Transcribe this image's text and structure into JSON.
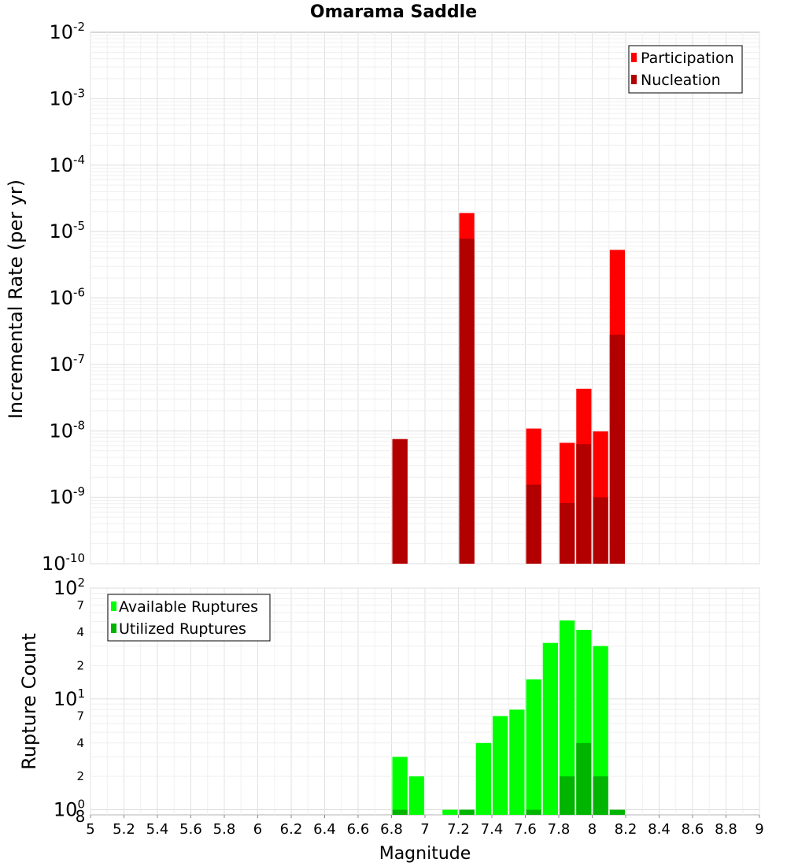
{
  "chart_data": [
    {
      "type": "bar",
      "title": "Omarama Saddle",
      "xlabel": "",
      "ylabel": "Incremental Rate (per yr)",
      "yscale": "log",
      "ylim": [
        1e-10,
        0.01
      ],
      "xlim": [
        5,
        9
      ],
      "bar_width": 0.1,
      "legend_position": "top-right",
      "grid": true,
      "y_ticks": [
        {
          "value": 1e-10,
          "base": "10",
          "exp": "-10"
        },
        {
          "value": 1e-09,
          "base": "10",
          "exp": "-9"
        },
        {
          "value": 1e-08,
          "base": "10",
          "exp": "-8"
        },
        {
          "value": 1e-07,
          "base": "10",
          "exp": "-7"
        },
        {
          "value": 1e-06,
          "base": "10",
          "exp": "-6"
        },
        {
          "value": 1e-05,
          "base": "10",
          "exp": "-5"
        },
        {
          "value": 0.0001,
          "base": "10",
          "exp": "-4"
        },
        {
          "value": 0.001,
          "base": "10",
          "exp": "-3"
        },
        {
          "value": 0.01,
          "base": "10",
          "exp": "-2"
        }
      ],
      "series": [
        {
          "name": "Participation",
          "color": "#ff0000",
          "x": [
            6.85,
            7.25,
            7.65,
            7.85,
            7.95,
            8.05,
            8.15
          ],
          "values": [
            7.5e-09,
            1.9e-05,
            1.08e-08,
            6.6e-09,
            4.3e-08,
            9.8e-09,
            5.3e-06
          ]
        },
        {
          "name": "Nucleation",
          "color": "#b20000",
          "x": [
            6.85,
            7.25,
            7.65,
            7.85,
            7.95,
            8.05,
            8.15
          ],
          "values": [
            7.5e-09,
            7.8e-06,
            1.55e-09,
            8.2e-10,
            6.3e-09,
            1e-09,
            2.8e-07
          ]
        }
      ]
    },
    {
      "type": "bar",
      "title": "",
      "xlabel": "Magnitude",
      "ylabel": "Rupture Count",
      "yscale": "log",
      "ylim": [
        0.9,
        100
      ],
      "xlim": [
        5,
        9
      ],
      "bar_width": 0.1,
      "legend_position": "top-left",
      "grid": true,
      "x_ticks": [
        "5",
        "5.2",
        "5.4",
        "5.6",
        "5.8",
        "6",
        "6.2",
        "6.4",
        "6.6",
        "6.8",
        "7",
        "7.2",
        "7.4",
        "7.6",
        "7.8",
        "8",
        "8.2",
        "8.4",
        "8.6",
        "8.8",
        "9"
      ],
      "y_major_ticks": [
        {
          "value": 1,
          "base": "10",
          "exp": "0"
        },
        {
          "value": 10,
          "base": "10",
          "exp": "1"
        },
        {
          "value": 100,
          "base": "10",
          "exp": "2"
        }
      ],
      "y_minor_ticks": [
        {
          "value": 2,
          "label": "2"
        },
        {
          "value": 4,
          "label": "4"
        },
        {
          "value": 7,
          "label": "7"
        },
        {
          "value": 20,
          "label": "2"
        },
        {
          "value": 40,
          "label": "4"
        },
        {
          "value": 70,
          "label": "7"
        }
      ],
      "corner_label": "8",
      "series": [
        {
          "name": "Available Ruptures",
          "color": "#00ff00",
          "x": [
            6.85,
            6.95,
            7.15,
            7.25,
            7.35,
            7.45,
            7.55,
            7.65,
            7.75,
            7.85,
            7.95,
            8.05
          ],
          "values": [
            3,
            2,
            1,
            1,
            4,
            7,
            8,
            15,
            32,
            51,
            42,
            30
          ]
        },
        {
          "name": "Utilized Ruptures",
          "color": "#00b400",
          "x": [
            6.85,
            7.25,
            7.65,
            7.85,
            7.95,
            8.05,
            8.15
          ],
          "values": [
            1,
            1,
            1,
            2,
            4,
            2,
            1
          ]
        }
      ]
    }
  ]
}
